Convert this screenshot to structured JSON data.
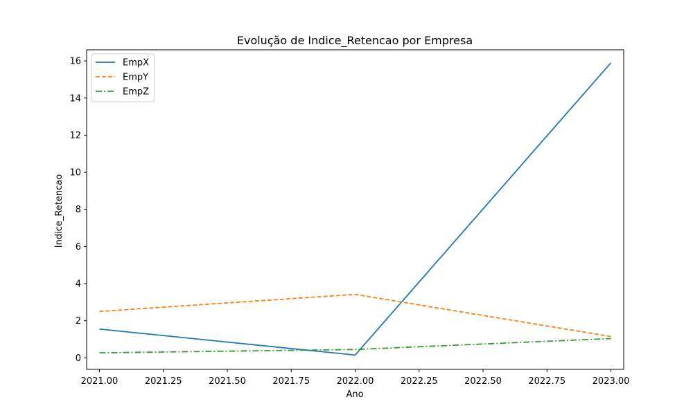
{
  "chart_data": {
    "type": "line",
    "title": "Evolução de Indice_Retencao por Empresa",
    "xlabel": "Ano",
    "ylabel": "Indice_Retencao",
    "xlim": [
      2020.95,
      2023.05
    ],
    "ylim": [
      -0.62,
      16.6
    ],
    "x": [
      2021,
      2022,
      2023
    ],
    "x_ticks": [
      2021.0,
      2021.25,
      2021.5,
      2021.75,
      2022.0,
      2022.25,
      2022.5,
      2022.75,
      2023.0
    ],
    "x_tick_labels": [
      "2021.00",
      "2021.25",
      "2021.50",
      "2021.75",
      "2022.00",
      "2022.25",
      "2022.50",
      "2022.75",
      "2023.00"
    ],
    "y_ticks": [
      0,
      2,
      4,
      6,
      8,
      10,
      12,
      14,
      16
    ],
    "y_tick_labels": [
      "0",
      "2",
      "4",
      "6",
      "8",
      "10",
      "12",
      "14",
      "16"
    ],
    "grid": false,
    "legend_position": "top-left",
    "series": [
      {
        "name": "EmpX",
        "values": [
          1.55,
          0.15,
          15.9
        ],
        "color": "#1f77b4",
        "line_style": "solid"
      },
      {
        "name": "EmpY",
        "values": [
          2.5,
          3.42,
          1.15
        ],
        "color": "#ff7f0e",
        "line_style": "dashed"
      },
      {
        "name": "EmpZ",
        "values": [
          0.27,
          0.45,
          1.04
        ],
        "color": "#2ca02c",
        "line_style": "dashdot"
      }
    ]
  }
}
